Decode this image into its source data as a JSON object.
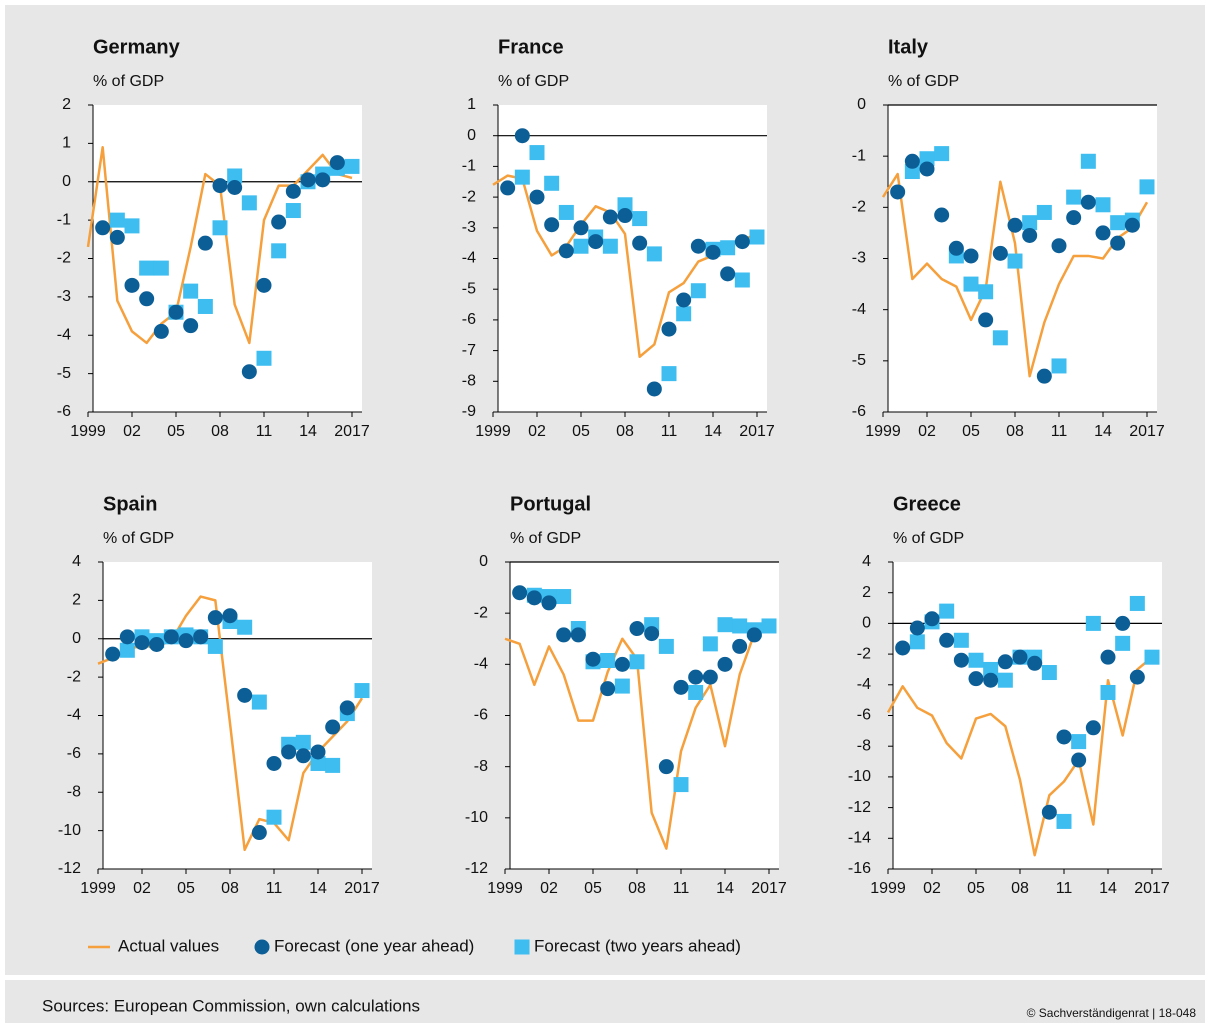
{
  "legend": [
    {
      "name": "Actual values",
      "color": "#f5a03c",
      "marker": "line"
    },
    {
      "name": "Forecast (one year ahead)",
      "color": "#0b5e96",
      "marker": "circle"
    },
    {
      "name": "Forecast (two years ahead)",
      "color": "#3dbdf0",
      "marker": "square"
    }
  ],
  "sources": "Sources: European Commission, own calculations",
  "copyright": "© Sachverständigenrat | 18-048",
  "chart_data": [
    {
      "type": "line",
      "title": "Germany",
      "subtitle": "% of GDP",
      "x": [
        1999,
        2000,
        2001,
        2002,
        2003,
        2004,
        2005,
        2006,
        2007,
        2008,
        2009,
        2010,
        2011,
        2012,
        2013,
        2014,
        2015,
        2016,
        2017
      ],
      "xlim": [
        1999,
        2017
      ],
      "xticks": [
        1999,
        {
          "value": 2002,
          "label": "02"
        },
        {
          "value": 2005,
          "label": "05"
        },
        {
          "value": 2008,
          "label": "08"
        },
        {
          "value": 2011,
          "label": "11"
        },
        {
          "value": 2014,
          "label": "14"
        },
        2017
      ],
      "ylim": [
        -6,
        2
      ],
      "yticks": [
        2,
        1,
        0,
        -1,
        -2,
        -3,
        -4,
        -5,
        -6
      ],
      "series": [
        {
          "values": [
            -1.7,
            0.9,
            -3.1,
            -3.9,
            -4.2,
            -3.7,
            -3.4,
            -1.7,
            0.2,
            -0.1,
            -3.2,
            -4.2,
            -1.0,
            -0.1,
            -0.1,
            0.3,
            0.7,
            0.2,
            0.1
          ]
        },
        {
          "values": [
            null,
            -1.2,
            -1.45,
            -2.7,
            -3.05,
            -3.9,
            -3.4,
            -3.75,
            -1.6,
            -0.1,
            -0.15,
            -4.95,
            -2.7,
            -1.05,
            -0.25,
            0.05,
            0.05,
            0.5,
            null
          ]
        },
        {
          "values": [
            null,
            null,
            -1.0,
            -1.15,
            -2.25,
            -2.25,
            -3.4,
            -2.85,
            -3.25,
            -1.2,
            0.15,
            -0.55,
            -4.6,
            -1.8,
            -0.75,
            0.0,
            0.2,
            0.35,
            0.4
          ]
        }
      ]
    },
    {
      "type": "line",
      "title": "France",
      "subtitle": "% of GDP",
      "x": [
        1999,
        2000,
        2001,
        2002,
        2003,
        2004,
        2005,
        2006,
        2007,
        2008,
        2009,
        2010,
        2011,
        2012,
        2013,
        2014,
        2015,
        2016,
        2017
      ],
      "xlim": [
        1999,
        2017
      ],
      "xticks": [
        1999,
        {
          "value": 2002,
          "label": "02"
        },
        {
          "value": 2005,
          "label": "05"
        },
        {
          "value": 2008,
          "label": "08"
        },
        {
          "value": 2011,
          "label": "11"
        },
        {
          "value": 2014,
          "label": "14"
        },
        2017
      ],
      "ylim": [
        -9,
        1
      ],
      "yticks": [
        1,
        0,
        -1,
        -2,
        -3,
        -4,
        -5,
        -6,
        -7,
        -8,
        -9
      ],
      "series": [
        {
          "values": [
            -1.6,
            -1.3,
            -1.4,
            -3.1,
            -3.9,
            -3.6,
            -2.9,
            -2.3,
            -2.5,
            -3.2,
            -7.2,
            -6.8,
            -5.1,
            -4.8,
            -4.1,
            -3.9,
            -3.6,
            -3.4,
            -3.2
          ]
        },
        {
          "values": [
            null,
            -1.7,
            0.0,
            -2.0,
            -2.9,
            -3.75,
            -3.0,
            -3.45,
            -2.65,
            -2.6,
            -3.5,
            -8.25,
            -6.3,
            -5.35,
            -3.6,
            -3.8,
            -4.5,
            -3.45,
            null
          ]
        },
        {
          "values": [
            null,
            null,
            -1.35,
            -0.55,
            -1.55,
            -2.5,
            -3.6,
            -3.3,
            -3.6,
            -2.25,
            -2.7,
            -3.85,
            -7.75,
            -5.8,
            -5.05,
            -3.7,
            -3.65,
            -4.7,
            -3.3
          ]
        }
      ]
    },
    {
      "type": "line",
      "title": "Italy",
      "subtitle": "% of GDP",
      "x": [
        1999,
        2000,
        2001,
        2002,
        2003,
        2004,
        2005,
        2006,
        2007,
        2008,
        2009,
        2010,
        2011,
        2012,
        2013,
        2014,
        2015,
        2016,
        2017
      ],
      "xlim": [
        1999,
        2017
      ],
      "xticks": [
        1999,
        {
          "value": 2002,
          "label": "02"
        },
        {
          "value": 2005,
          "label": "05"
        },
        {
          "value": 2008,
          "label": "08"
        },
        {
          "value": 2011,
          "label": "11"
        },
        {
          "value": 2014,
          "label": "14"
        },
        2017
      ],
      "ylim": [
        -6,
        0
      ],
      "yticks": [
        0,
        -1,
        -2,
        -3,
        -4,
        -5,
        -6
      ],
      "series": [
        {
          "values": [
            -1.8,
            -1.35,
            -3.4,
            -3.1,
            -3.4,
            -3.55,
            -4.2,
            -3.6,
            -1.5,
            -2.7,
            -5.3,
            -4.25,
            -3.5,
            -2.95,
            -2.95,
            -3.0,
            -2.6,
            -2.4,
            -1.9
          ]
        },
        {
          "values": [
            null,
            -1.7,
            -1.1,
            -1.25,
            -2.15,
            -2.8,
            -2.95,
            -4.2,
            -2.9,
            -2.35,
            -2.55,
            -5.3,
            -2.75,
            -2.2,
            -1.9,
            -2.5,
            -2.7,
            -2.35,
            null
          ]
        },
        {
          "values": [
            null,
            null,
            -1.3,
            -1.05,
            -0.95,
            -2.95,
            -3.5,
            -3.65,
            -4.55,
            -3.05,
            -2.3,
            -2.1,
            -5.1,
            -1.8,
            -1.1,
            -1.95,
            -2.3,
            -2.25,
            -1.6
          ]
        }
      ]
    },
    {
      "type": "line",
      "title": "Spain",
      "subtitle": "% of GDP",
      "x": [
        1999,
        2000,
        2001,
        2002,
        2003,
        2004,
        2005,
        2006,
        2007,
        2008,
        2009,
        2010,
        2011,
        2012,
        2013,
        2014,
        2015,
        2016,
        2017
      ],
      "xlim": [
        1999,
        2017
      ],
      "xticks": [
        1999,
        {
          "value": 2002,
          "label": "02"
        },
        {
          "value": 2005,
          "label": "05"
        },
        {
          "value": 2008,
          "label": "08"
        },
        {
          "value": 2011,
          "label": "11"
        },
        {
          "value": 2014,
          "label": "14"
        },
        2017
      ],
      "ylim": [
        -12,
        4
      ],
      "yticks": [
        4,
        2,
        0,
        -2,
        -4,
        -6,
        -8,
        -10,
        -12
      ],
      "series": [
        {
          "values": [
            -1.3,
            -1.0,
            -0.5,
            -0.4,
            -0.4,
            -0.1,
            1.2,
            2.2,
            2.0,
            -4.4,
            -11.0,
            -9.4,
            -9.6,
            -10.5,
            -7.0,
            -5.9,
            -5.1,
            -4.3,
            -3.1
          ]
        },
        {
          "values": [
            null,
            -0.8,
            0.1,
            -0.2,
            -0.3,
            0.1,
            -0.1,
            0.1,
            1.1,
            1.2,
            -2.95,
            -10.1,
            -6.5,
            -5.9,
            -6.1,
            -5.9,
            -4.6,
            -3.6,
            null
          ]
        },
        {
          "values": [
            null,
            null,
            -0.6,
            0.1,
            -0.1,
            0.1,
            0.2,
            0.1,
            -0.4,
            0.9,
            0.6,
            -3.3,
            -9.3,
            -5.5,
            -5.4,
            -6.5,
            -6.6,
            -3.9,
            -2.7
          ]
        }
      ]
    },
    {
      "type": "line",
      "title": "Portugal",
      "subtitle": "% of GDP",
      "x": [
        1999,
        2000,
        2001,
        2002,
        2003,
        2004,
        2005,
        2006,
        2007,
        2008,
        2009,
        2010,
        2011,
        2012,
        2013,
        2014,
        2015,
        2016,
        2017
      ],
      "xlim": [
        1999,
        2017
      ],
      "xticks": [
        1999,
        {
          "value": 2002,
          "label": "02"
        },
        {
          "value": 2005,
          "label": "05"
        },
        {
          "value": 2008,
          "label": "08"
        },
        {
          "value": 2011,
          "label": "11"
        },
        {
          "value": 2014,
          "label": "14"
        },
        2017
      ],
      "ylim": [
        -12,
        0
      ],
      "yticks": [
        0,
        -2,
        -4,
        -6,
        -8,
        -10,
        -12
      ],
      "series": [
        {
          "values": [
            -3.0,
            -3.2,
            -4.8,
            -3.3,
            -4.4,
            -6.2,
            -6.2,
            -4.3,
            -3.0,
            -3.8,
            -9.8,
            -11.2,
            -7.4,
            -5.7,
            -4.8,
            -7.2,
            -4.4,
            -2.8,
            -2.3
          ]
        },
        {
          "values": [
            null,
            -1.2,
            -1.4,
            -1.6,
            -2.85,
            -2.85,
            -3.8,
            -4.95,
            -4.0,
            -2.6,
            -2.8,
            -8.0,
            -4.9,
            -4.5,
            -4.5,
            -4.0,
            -3.3,
            -2.85,
            null
          ]
        },
        {
          "values": [
            null,
            null,
            -1.3,
            -1.35,
            -1.35,
            -2.6,
            -3.9,
            -3.85,
            -4.85,
            -3.9,
            -2.45,
            -3.3,
            -8.7,
            -5.1,
            -3.2,
            -2.45,
            -2.5,
            -2.65,
            -2.5
          ]
        }
      ]
    },
    {
      "type": "line",
      "title": "Greece",
      "subtitle": "% of GDP",
      "x": [
        1999,
        2000,
        2001,
        2002,
        2003,
        2004,
        2005,
        2006,
        2007,
        2008,
        2009,
        2010,
        2011,
        2012,
        2013,
        2014,
        2015,
        2016,
        2017
      ],
      "xlim": [
        1999,
        2017
      ],
      "xticks": [
        1999,
        {
          "value": 2002,
          "label": "02"
        },
        {
          "value": 2005,
          "label": "05"
        },
        {
          "value": 2008,
          "label": "08"
        },
        {
          "value": 2011,
          "label": "11"
        },
        {
          "value": 2014,
          "label": "14"
        },
        2017
      ],
      "ylim": [
        -16,
        4
      ],
      "yticks": [
        4,
        2,
        0,
        -2,
        -4,
        -6,
        -8,
        -10,
        -12,
        -14,
        -16
      ],
      "series": [
        {
          "values": [
            -5.8,
            -4.1,
            -5.5,
            -6.0,
            -7.8,
            -8.8,
            -6.2,
            -5.9,
            -6.7,
            -10.2,
            -15.1,
            -11.2,
            -10.3,
            -8.9,
            -13.1,
            -3.7,
            -7.3,
            -3.0,
            -2.2
          ]
        },
        {
          "values": [
            null,
            -1.6,
            -0.3,
            0.3,
            -1.1,
            -2.4,
            -3.6,
            -3.7,
            -2.5,
            -2.2,
            -2.6,
            -12.3,
            -7.4,
            -8.9,
            -6.8,
            -2.2,
            0.0,
            -3.5,
            null
          ]
        },
        {
          "values": [
            null,
            null,
            -1.2,
            0.1,
            0.8,
            -1.1,
            -2.4,
            -3.0,
            -3.7,
            -2.2,
            -2.2,
            -3.2,
            -12.9,
            -7.7,
            0.0,
            -4.5,
            -1.3,
            1.3,
            -2.2
          ]
        }
      ]
    }
  ]
}
